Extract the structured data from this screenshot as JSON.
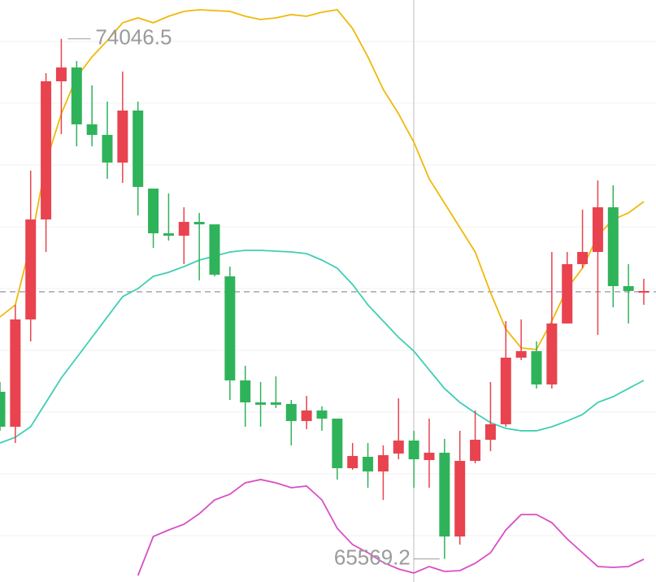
{
  "chart_data": {
    "type": "candlestick",
    "open": [
      68294,
      67724,
      69473,
      71103,
      73355,
      73580,
      72653,
      72481,
      72030,
      72878,
      71606,
      70877,
      70838,
      71063,
      71023,
      70175,
      68479,
      68121,
      68121,
      68095,
      67817,
      67989,
      67856,
      67048,
      67234,
      66995,
      67287,
      67499,
      67181,
      67300,
      65935,
      67167,
      67512,
      67764,
      68850,
      68956,
      68413,
      69407,
      70374,
      70573,
      71301,
      70016,
      69910
    ],
    "high": [
      68453,
      69711,
      71898,
      73488,
      74046.5,
      73686,
      73289,
      73024,
      73514,
      73024,
      71606,
      71527,
      71301,
      71209,
      71023,
      70334,
      68718,
      68453,
      68545,
      68161,
      68227,
      68055,
      67856,
      67459,
      67459,
      67419,
      68188,
      67658,
      67856,
      67525,
      67658,
      67989,
      68453,
      69446,
      69473,
      69115,
      70573,
      70573,
      71262,
      71739,
      71659,
      70374,
      70135
    ],
    "low": [
      67658,
      67459,
      69115,
      70573,
      72494,
      72295,
      72295,
      71765,
      71699,
      71169,
      70639,
      70758,
      70374,
      70109,
      70175,
      68161,
      67724,
      67724,
      68029,
      67419,
      67684,
      67658,
      66863,
      67022,
      66730,
      66531,
      67194,
      66730,
      66730,
      65569.2,
      65803,
      67128,
      67326,
      67724,
      68810,
      68347,
      68347,
      69407,
      70308,
      69221,
      69672,
      69407,
      69711
    ],
    "close": [
      67724,
      69473,
      71103,
      73355,
      73580,
      72653,
      72481,
      72030,
      72878,
      71633,
      70877,
      70838,
      71063,
      71023,
      70202,
      68479,
      68121,
      68082,
      68082,
      67817,
      67989,
      67856,
      67048,
      67247,
      66995,
      67260,
      67499,
      67194,
      67300,
      65935,
      67167,
      67512,
      67764,
      68850,
      68956,
      68413,
      69407,
      70374,
      70573,
      71301,
      70016,
      69937,
      69937
    ],
    "up_color": "#e8434f",
    "down_color": "#2fb35a",
    "lines": [
      {
        "color": "#f0b90b",
        "values": [
          69513,
          69711,
          70705,
          72030,
          72825,
          73421,
          73753,
          74018,
          74309,
          74389,
          74309,
          74415,
          74495,
          74521,
          74508,
          74495,
          74415,
          74362,
          74389,
          74442,
          74415,
          74481,
          74521,
          74216,
          73753,
          73223,
          72825,
          72361,
          71765,
          71368,
          70970,
          70573,
          69910,
          69314,
          69009,
          68983,
          69446,
          69976,
          70308,
          70838,
          71103,
          71209,
          71394
        ]
      },
      {
        "color": "#3fcfb4",
        "values": [
          67459,
          67552,
          67724,
          68121,
          68519,
          68850,
          69181,
          69513,
          69844,
          69976,
          70175,
          70241,
          70334,
          70440,
          70506,
          70573,
          70599,
          70599,
          70586,
          70573,
          70546,
          70440,
          70308,
          70043,
          69711,
          69446,
          69181,
          68956,
          68651,
          68347,
          68121,
          67949,
          67790,
          67697,
          67658,
          67658,
          67724,
          67817,
          67923,
          68121,
          68214,
          68347,
          68479
        ]
      },
      {
        "color": "#d84fc6",
        "values": [
          null,
          null,
          null,
          null,
          null,
          null,
          null,
          null,
          null,
          65299,
          65935,
          66041,
          66134,
          66306,
          66531,
          66624,
          66810,
          66863,
          66810,
          66730,
          66757,
          66531,
          66068,
          65803,
          65670,
          65511,
          65405,
          65339,
          65445,
          65365,
          65379,
          65498,
          65670,
          66041,
          66293,
          66293,
          66160,
          65895,
          65670,
          65445,
          65432,
          65445,
          65564
        ]
      }
    ],
    "price_line": 69924,
    "ylim": [
      65193,
      74680
    ]
  }
}
